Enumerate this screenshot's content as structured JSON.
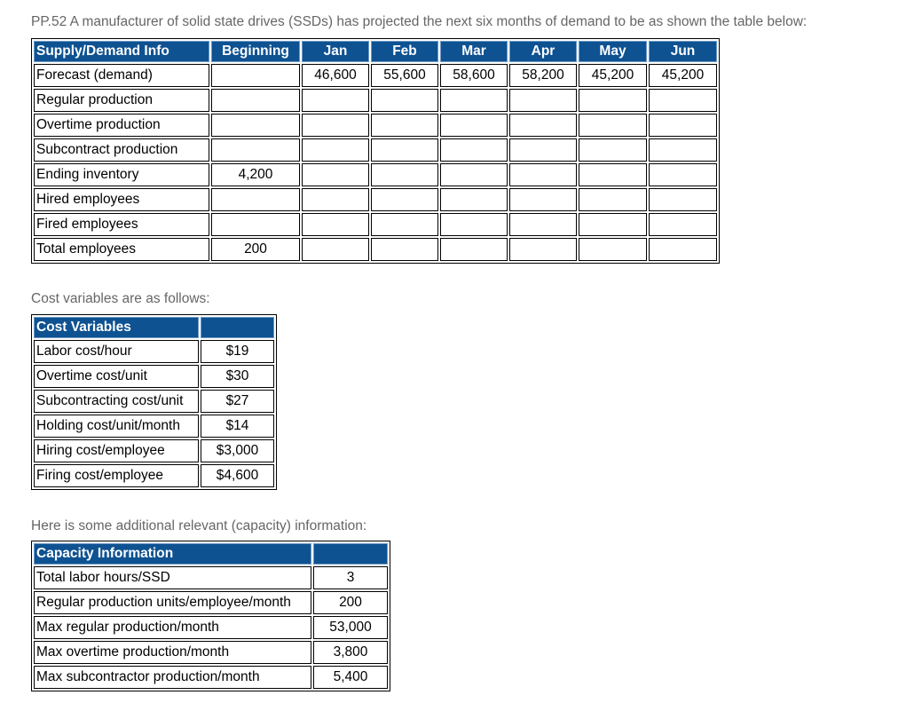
{
  "intro": "PP.52 A manufacturer of solid state drives (SSDs) has projected the next six months of demand to be as shown the table below:",
  "supply_demand": {
    "headers": [
      "Supply/Demand Info",
      "Beginning",
      "Jan",
      "Feb",
      "Mar",
      "Apr",
      "May",
      "Jun"
    ],
    "rows": [
      {
        "label": "Forecast (demand)",
        "cells": [
          "",
          "46,600",
          "55,600",
          "58,600",
          "58,200",
          "45,200",
          "45,200"
        ]
      },
      {
        "label": "Regular production",
        "cells": [
          "",
          "",
          "",
          "",
          "",
          "",
          ""
        ]
      },
      {
        "label": "Overtime production",
        "cells": [
          "",
          "",
          "",
          "",
          "",
          "",
          ""
        ]
      },
      {
        "label": "Subcontract production",
        "cells": [
          "",
          "",
          "",
          "",
          "",
          "",
          ""
        ]
      },
      {
        "label": "Ending inventory",
        "cells": [
          "4,200",
          "",
          "",
          "",
          "",
          "",
          ""
        ]
      },
      {
        "label": "Hired employees",
        "cells": [
          "",
          "",
          "",
          "",
          "",
          "",
          ""
        ]
      },
      {
        "label": "Fired employees",
        "cells": [
          "",
          "",
          "",
          "",
          "",
          "",
          ""
        ]
      },
      {
        "label": "Total employees",
        "cells": [
          "200",
          "",
          "",
          "",
          "",
          "",
          ""
        ]
      }
    ]
  },
  "cost_caption": "Cost variables are as follows:",
  "cost_variables": {
    "headers": [
      "Cost Variables",
      ""
    ],
    "rows": [
      {
        "label": "Labor cost/hour",
        "value": "$19"
      },
      {
        "label": "Overtime cost/unit",
        "value": "$30"
      },
      {
        "label": "Subcontracting cost/unit",
        "value": "$27"
      },
      {
        "label": "Holding cost/unit/month",
        "value": "$14"
      },
      {
        "label": "Hiring cost/employee",
        "value": "$3,000"
      },
      {
        "label": "Firing cost/employee",
        "value": "$4,600"
      }
    ]
  },
  "capacity_caption": "Here is some additional relevant (capacity) information:",
  "capacity_info": {
    "headers": [
      "Capacity Information",
      ""
    ],
    "rows": [
      {
        "label": "Total labor hours/SSD",
        "value": "3"
      },
      {
        "label": "Regular production units/employee/month",
        "value": "200"
      },
      {
        "label": "Max regular production/month",
        "value": "53,000"
      },
      {
        "label": "Max overtime production/month",
        "value": "3,800"
      },
      {
        "label": "Max subcontractor production/month",
        "value": "5,400"
      }
    ]
  },
  "colors": {
    "header_bg": "#0e5291",
    "header_text": "#ffffff",
    "caption_text": "#666666"
  }
}
